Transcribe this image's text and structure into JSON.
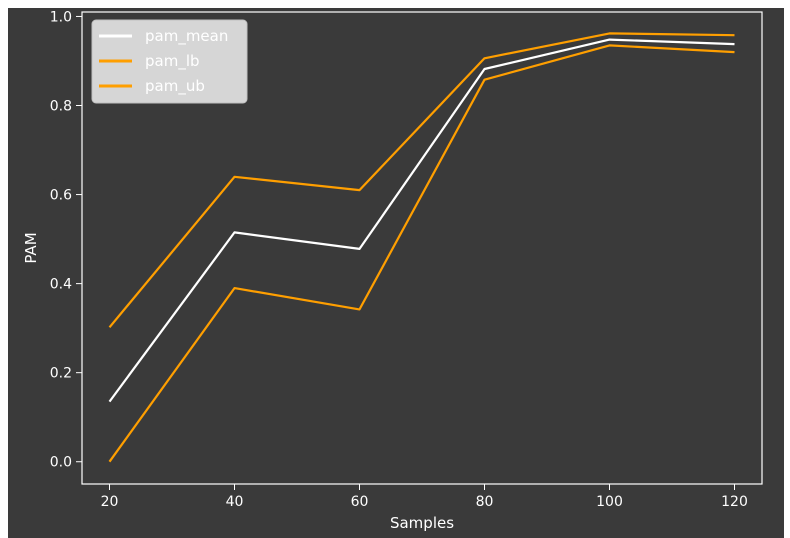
{
  "chart_data": {
    "type": "line",
    "xlabel": "Samples",
    "ylabel": "PAM",
    "x": [
      20,
      40,
      60,
      80,
      100,
      120
    ],
    "xticks": [
      "20",
      "40",
      "60",
      "80",
      "100",
      "120"
    ],
    "yticks": [
      "0.0",
      "0.2",
      "0.4",
      "0.6",
      "0.8",
      "1.0"
    ],
    "xlim": [
      15.6,
      124.4
    ],
    "ylim": [
      -0.05,
      1.01
    ],
    "grid": false,
    "legend_position": "top-left",
    "background_color": "#3a3a3a",
    "series": [
      {
        "name": "pam_mean",
        "color": "#ffffff",
        "values": [
          0.135,
          0.515,
          0.478,
          0.882,
          0.948,
          0.938
        ]
      },
      {
        "name": "pam_lb",
        "color": "#ff9f00",
        "values": [
          0.0,
          0.39,
          0.342,
          0.858,
          0.935,
          0.92
        ]
      },
      {
        "name": "pam_ub",
        "color": "#ff9f00",
        "values": [
          0.302,
          0.64,
          0.61,
          0.906,
          0.962,
          0.958
        ]
      }
    ]
  }
}
